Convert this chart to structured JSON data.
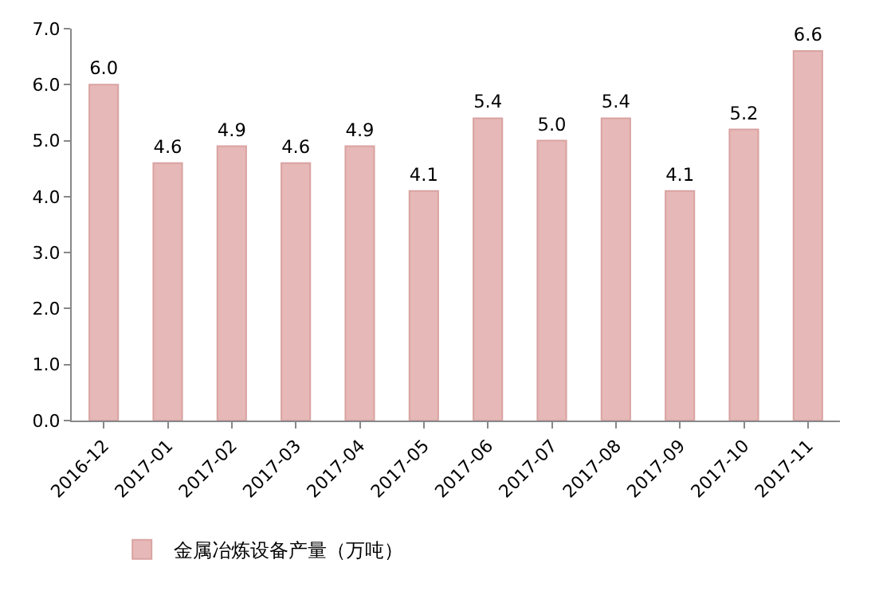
{
  "chart_data": {
    "type": "bar",
    "categories": [
      "2016-12",
      "2017-01",
      "2017-02",
      "2017-03",
      "2017-04",
      "2017-05",
      "2017-06",
      "2017-07",
      "2017-08",
      "2017-09",
      "2017-10",
      "2017-11"
    ],
    "series": [
      {
        "name": "金属冶炼设备产量（万吨）",
        "color": "#e6b8b7",
        "values": [
          6.0,
          4.6,
          4.9,
          4.6,
          4.9,
          4.1,
          5.4,
          5.0,
          5.4,
          4.1,
          5.2,
          6.6
        ],
        "value_labels": [
          "6.0",
          "4.6",
          "4.9",
          "4.6",
          "4.9",
          "4.1",
          "5.4",
          "5.0",
          "5.4",
          "4.1",
          "5.2",
          "6.6"
        ]
      }
    ],
    "ylim": [
      0,
      7
    ],
    "yticks": [
      {
        "value": 0,
        "label": "0.0"
      },
      {
        "value": 1,
        "label": "1.0"
      },
      {
        "value": 2,
        "label": "2.0"
      },
      {
        "value": 3,
        "label": "3.0"
      },
      {
        "value": 4,
        "label": "4.0"
      },
      {
        "value": 5,
        "label": "5.0"
      },
      {
        "value": 6,
        "label": "6.0"
      },
      {
        "value": 7,
        "label": "7.0"
      }
    ],
    "legend": "bottom"
  }
}
